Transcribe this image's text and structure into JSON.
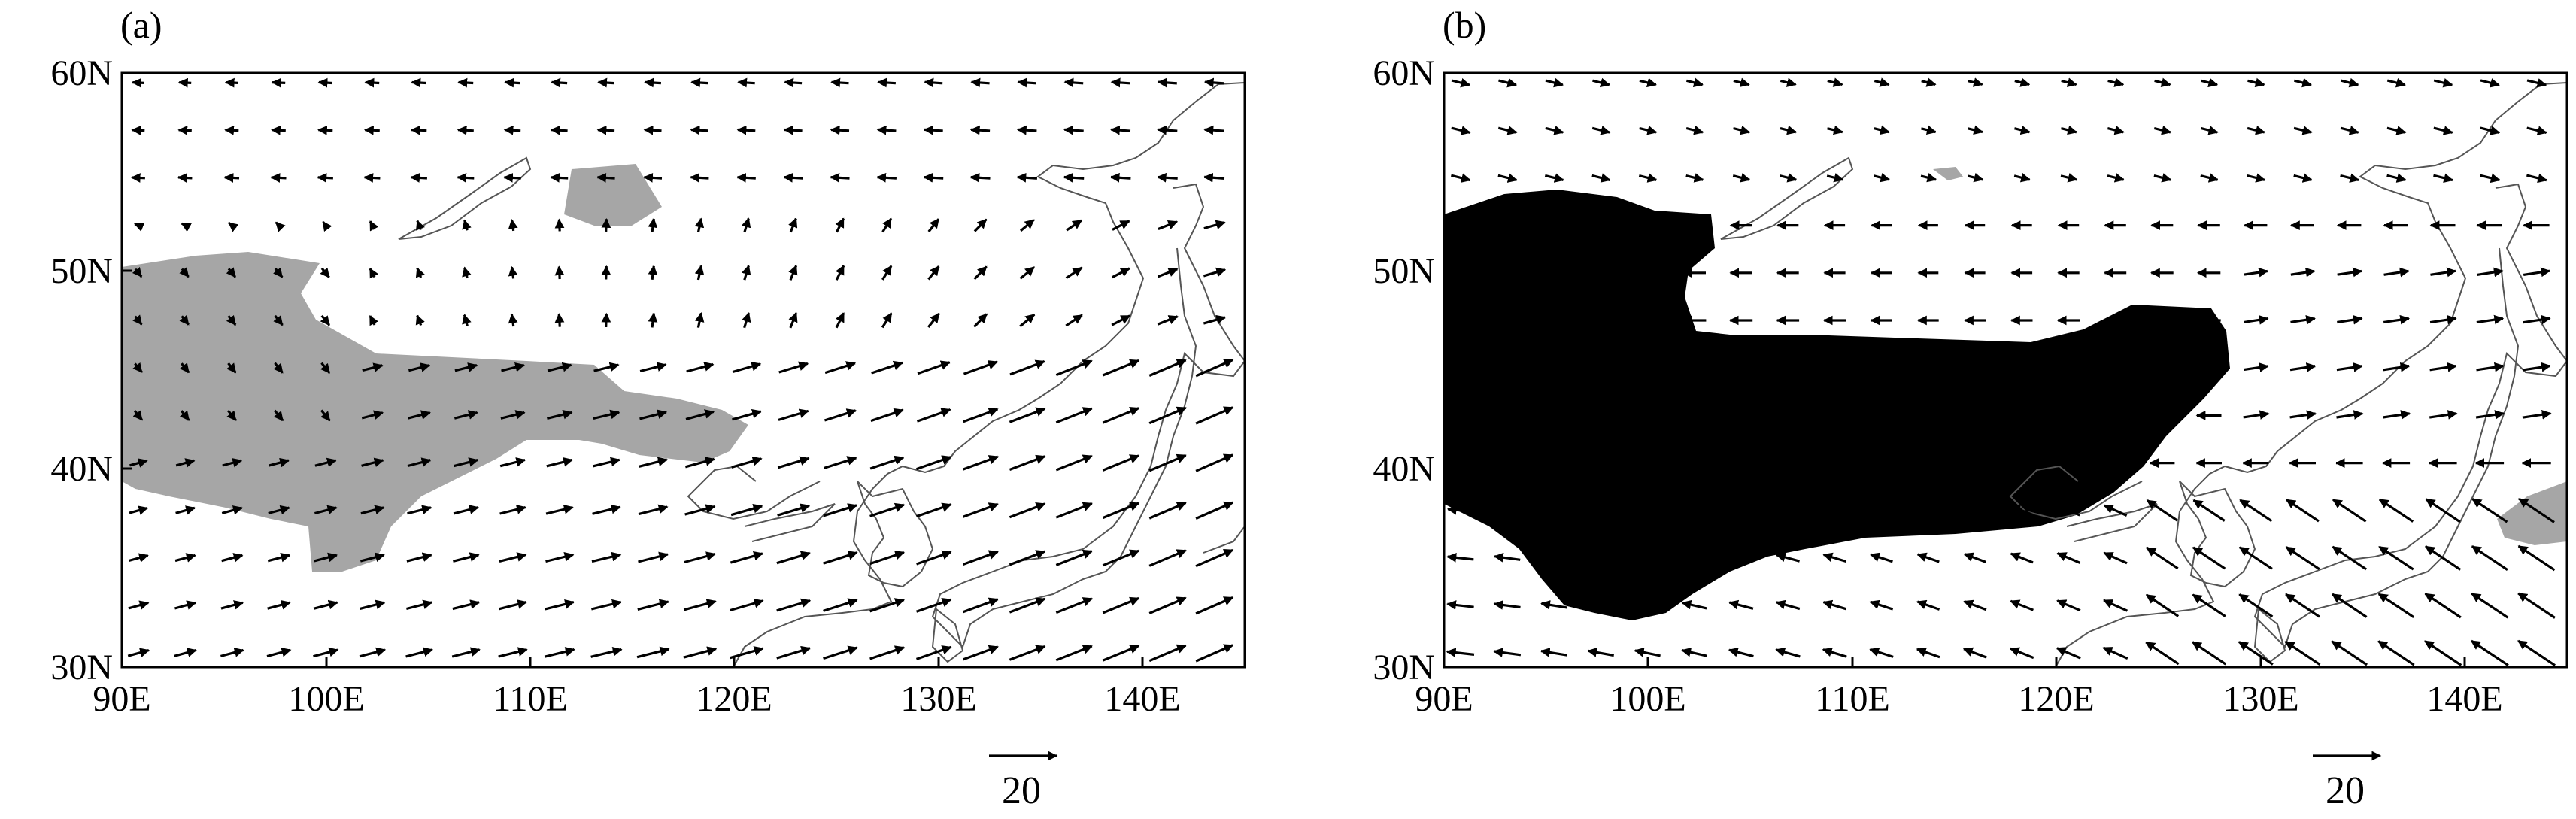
{
  "panels": [
    {
      "label": "(a)",
      "lon_ticks": [
        "90E",
        "100E",
        "110E",
        "120E",
        "130E",
        "140E"
      ],
      "lat_ticks": [
        "30N",
        "40N",
        "50N",
        "60N"
      ],
      "reference_vector": "20"
    },
    {
      "label": "(b)",
      "lon_ticks": [
        "90E",
        "100E",
        "110E",
        "120E",
        "130E",
        "140E"
      ],
      "lat_ticks": [
        "30N",
        "40N",
        "50N",
        "60N"
      ],
      "reference_vector": "20"
    }
  ],
  "map_extent": {
    "lon": [
      90,
      145
    ],
    "lat": [
      30,
      60
    ]
  },
  "colors": {
    "shading": "#a6a6a6",
    "vectors": "#000000",
    "coastline": "#555555"
  },
  "vector_scale_reference": 20
}
